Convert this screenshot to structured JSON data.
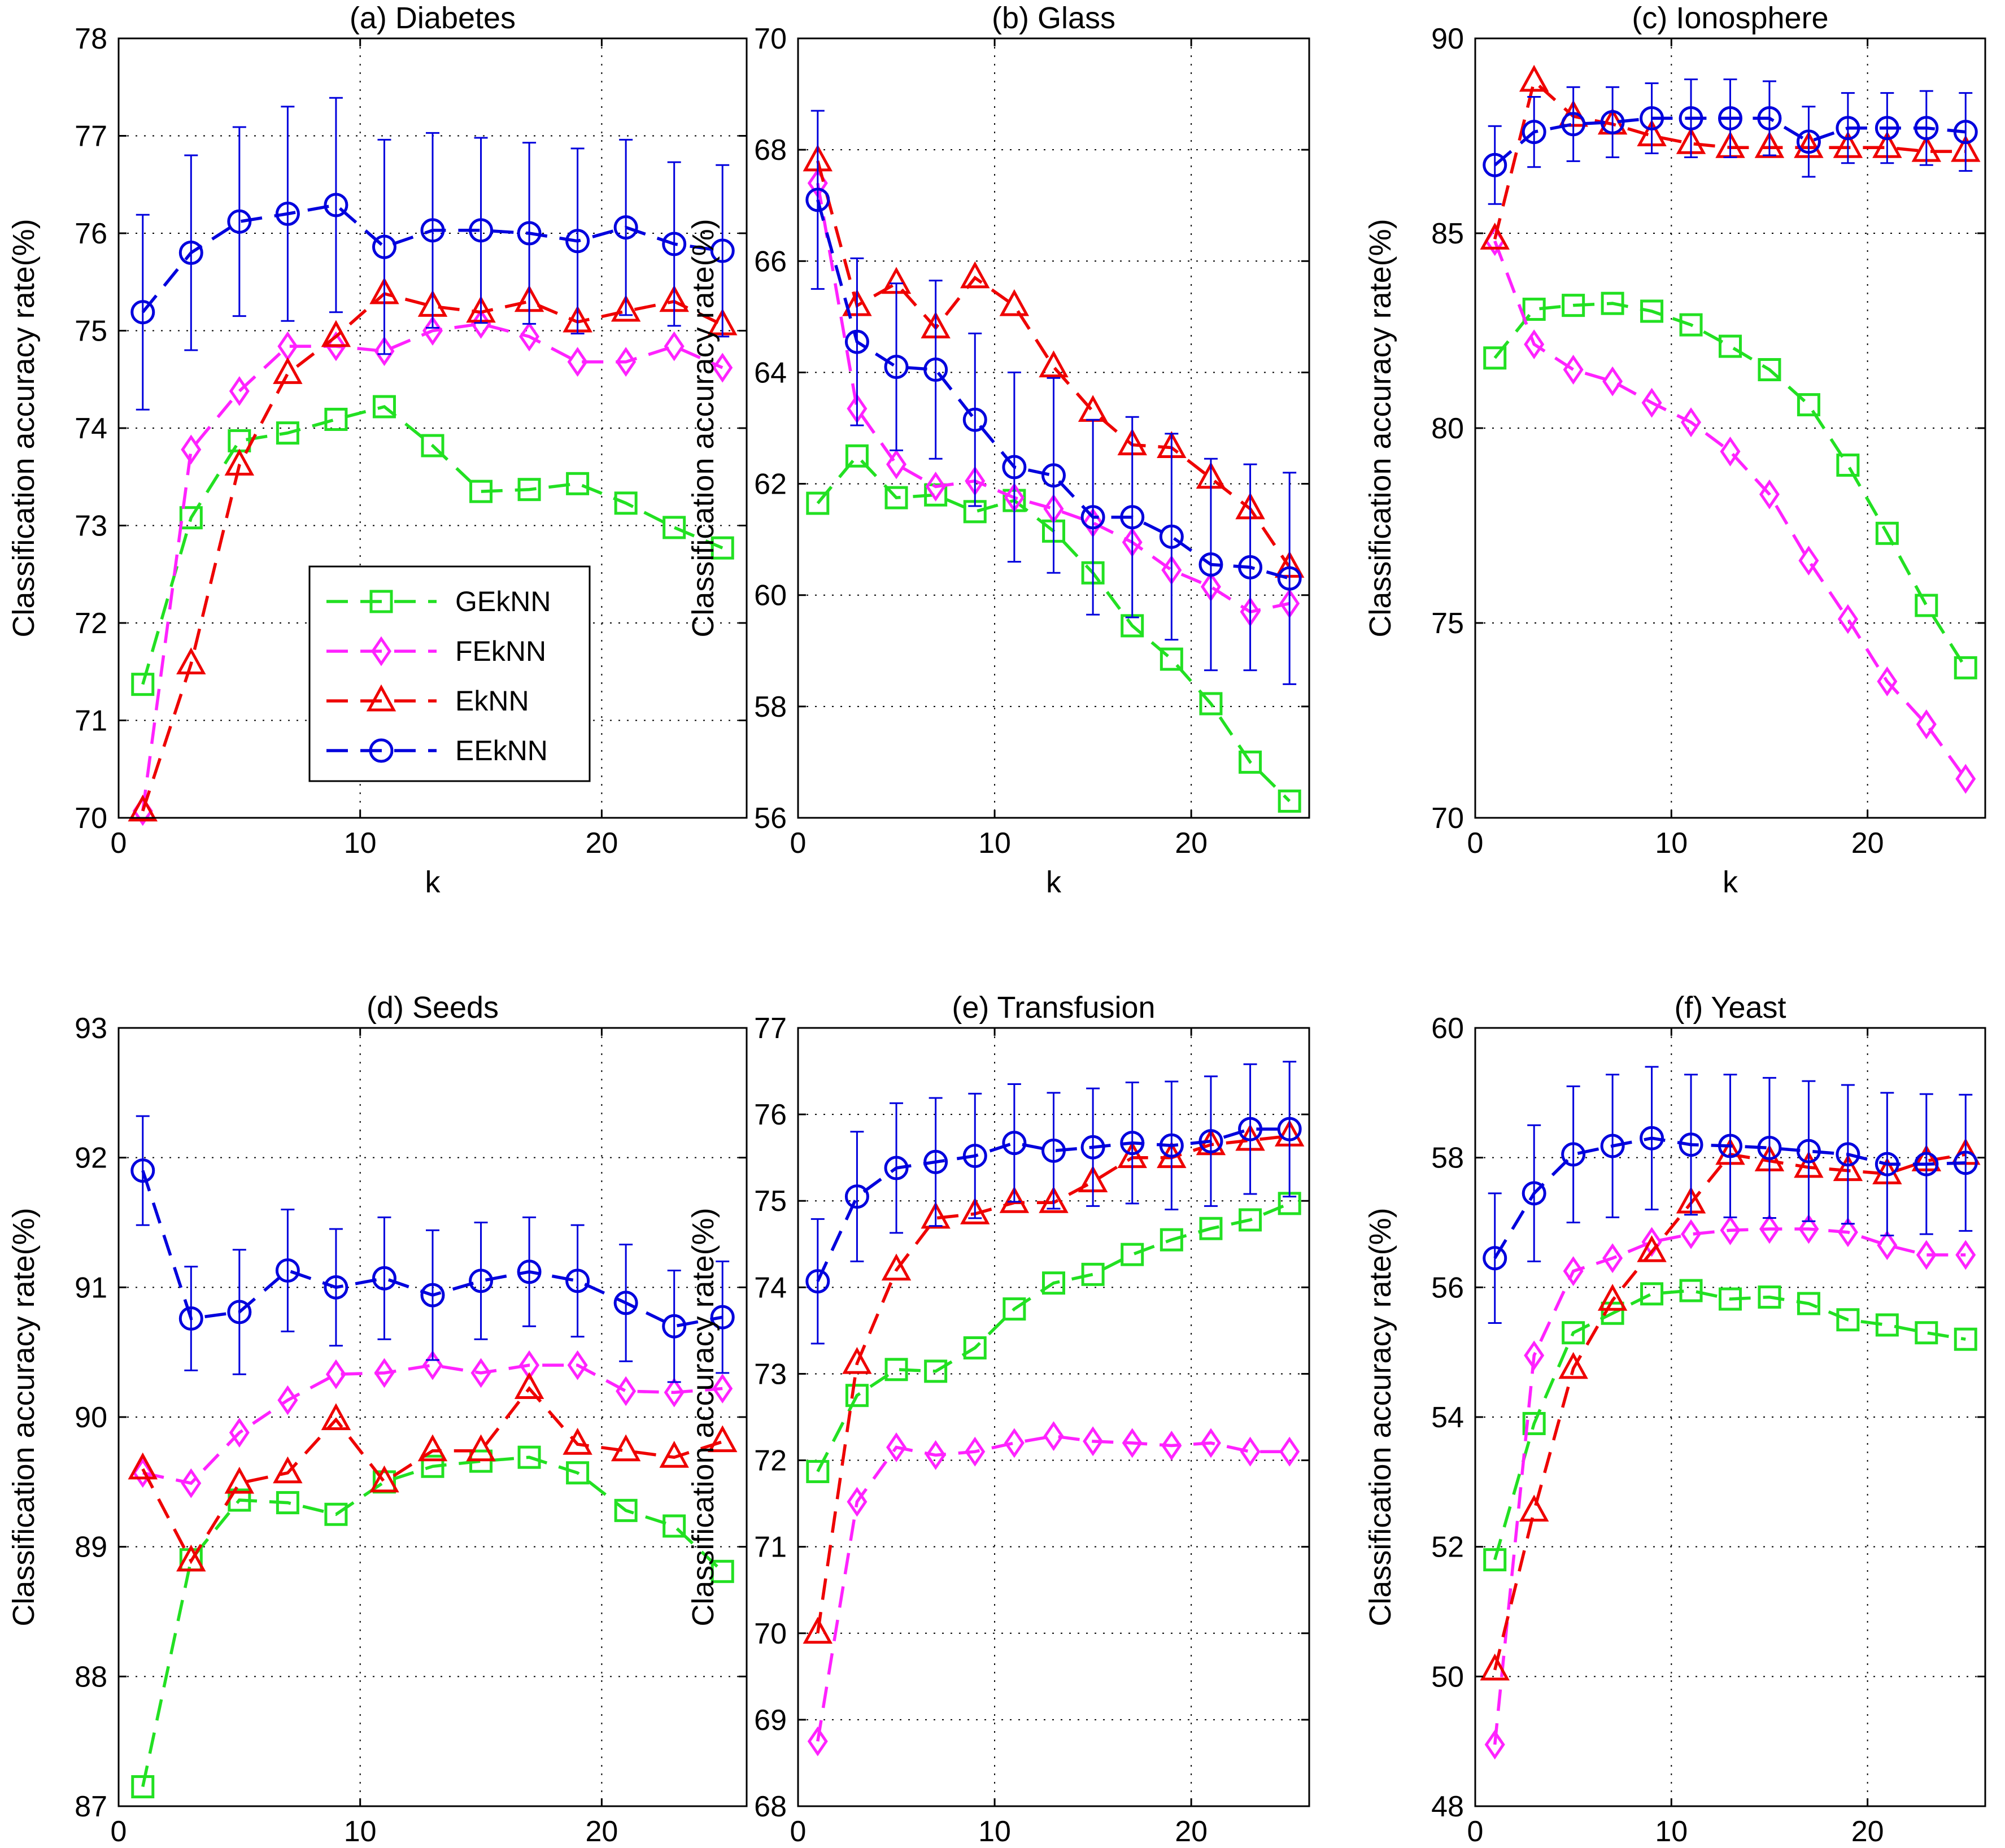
{
  "figure_name": "Classification accuracy vs k",
  "colors": {
    "GEkNN": "#22e022",
    "FEkNN": "#ff22ff",
    "EkNN": "#ee0000",
    "EEkNN": "#0000dd",
    "grid": "#000000",
    "axis": "#000000"
  },
  "legend": {
    "entries": [
      "GEkNN",
      "FEkNN",
      "EkNN",
      "EEkNN"
    ]
  },
  "chart_data": [
    {
      "type": "line",
      "title": "(a) Diabetes",
      "xlabel": "k",
      "ylabel": "Classification accuracy rate(%)",
      "xlim": [
        0,
        26
      ],
      "ylim": [
        70,
        78
      ],
      "xticks": [
        0,
        10,
        20
      ],
      "yticks": [
        70,
        71,
        72,
        73,
        74,
        75,
        76,
        77,
        78
      ],
      "grid": true,
      "legend": "lower-middle",
      "x": [
        1,
        3,
        5,
        7,
        9,
        11,
        13,
        15,
        17,
        19,
        21,
        23,
        25
      ],
      "series": [
        {
          "name": "GEkNN",
          "marker": "square",
          "values": [
            71.37,
            73.08,
            73.87,
            73.95,
            74.09,
            74.22,
            73.82,
            73.35,
            73.37,
            73.43,
            73.23,
            72.98,
            72.77
          ]
        },
        {
          "name": "FEkNN",
          "marker": "diamond",
          "values": [
            70.07,
            73.78,
            74.38,
            74.84,
            74.84,
            74.79,
            75.0,
            75.07,
            74.94,
            74.68,
            74.68,
            74.84,
            74.62
          ]
        },
        {
          "name": "EkNN",
          "marker": "triangle",
          "values": [
            70.07,
            71.58,
            73.62,
            74.56,
            74.94,
            75.38,
            75.25,
            75.19,
            75.3,
            75.09,
            75.2,
            75.3,
            75.06
          ]
        },
        {
          "name": "EEkNN",
          "marker": "circle",
          "values": [
            75.19,
            75.8,
            76.12,
            76.2,
            76.29,
            75.86,
            76.03,
            76.03,
            76.0,
            75.92,
            76.06,
            75.89,
            75.82
          ],
          "error": [
            1.0,
            1.0,
            0.97,
            1.1,
            1.1,
            1.1,
            1.0,
            0.95,
            0.93,
            0.95,
            0.9,
            0.84,
            0.88
          ]
        }
      ]
    },
    {
      "type": "line",
      "title": "(b) Glass",
      "xlabel": "k",
      "ylabel": "Classification accuracy rate(%)",
      "xlim": [
        0,
        26
      ],
      "ylim": [
        56,
        70
      ],
      "xticks": [
        0,
        10,
        20
      ],
      "yticks": [
        56,
        58,
        60,
        62,
        64,
        66,
        68,
        70
      ],
      "grid": true,
      "x": [
        1,
        3,
        5,
        7,
        9,
        11,
        13,
        15,
        17,
        19,
        21,
        23,
        25
      ],
      "series": [
        {
          "name": "GEkNN",
          "marker": "square",
          "values": [
            61.65,
            62.5,
            61.75,
            61.8,
            61.5,
            61.7,
            61.15,
            60.4,
            59.45,
            58.85,
            58.05,
            57.0,
            56.3
          ]
        },
        {
          "name": "FEkNN",
          "marker": "diamond",
          "values": [
            67.4,
            63.35,
            62.35,
            61.95,
            62.05,
            61.75,
            61.55,
            61.3,
            60.95,
            60.45,
            60.15,
            59.7,
            59.85
          ]
        },
        {
          "name": "EkNN",
          "marker": "triangle",
          "values": [
            67.8,
            65.2,
            65.6,
            64.8,
            65.7,
            65.2,
            64.1,
            63.3,
            62.7,
            62.65,
            62.1,
            61.55,
            60.5
          ]
        },
        {
          "name": "EEkNN",
          "marker": "circle",
          "values": [
            67.1,
            64.55,
            64.1,
            64.05,
            63.15,
            62.3,
            62.15,
            61.4,
            61.4,
            61.05,
            60.55,
            60.5,
            60.3
          ],
          "error": [
            1.6,
            1.5,
            1.5,
            1.6,
            1.55,
            1.7,
            1.75,
            1.75,
            1.8,
            1.85,
            1.9,
            1.85,
            1.9
          ]
        }
      ]
    },
    {
      "type": "line",
      "title": "(c) Ionosphere",
      "xlabel": "k",
      "ylabel": "Classification accuracy rate(%)",
      "xlim": [
        0,
        26
      ],
      "ylim": [
        70,
        90
      ],
      "xticks": [
        0,
        10,
        20
      ],
      "yticks": [
        70,
        75,
        80,
        85,
        90
      ],
      "grid": true,
      "x": [
        1,
        3,
        5,
        7,
        9,
        11,
        13,
        15,
        17,
        19,
        21,
        23,
        25
      ],
      "series": [
        {
          "name": "GEkNN",
          "marker": "square",
          "values": [
            81.8,
            83.05,
            83.15,
            83.2,
            83.0,
            82.65,
            82.1,
            81.5,
            80.6,
            79.05,
            77.3,
            75.45,
            73.85
          ]
        },
        {
          "name": "FEkNN",
          "marker": "diamond",
          "values": [
            84.8,
            82.15,
            81.5,
            81.2,
            80.65,
            80.15,
            79.4,
            78.3,
            76.6,
            75.1,
            73.5,
            72.4,
            71.0
          ]
        },
        {
          "name": "EkNN",
          "marker": "triangle",
          "values": [
            84.85,
            88.9,
            88.0,
            87.8,
            87.5,
            87.3,
            87.2,
            87.2,
            87.2,
            87.2,
            87.2,
            87.1,
            87.1
          ]
        },
        {
          "name": "EEkNN",
          "marker": "circle",
          "values": [
            86.75,
            87.6,
            87.8,
            87.85,
            87.95,
            87.95,
            87.95,
            87.95,
            87.35,
            87.7,
            87.7,
            87.7,
            87.6
          ],
          "error": [
            1.0,
            0.9,
            0.95,
            0.9,
            0.9,
            1.0,
            1.0,
            0.95,
            0.9,
            0.9,
            0.9,
            0.95,
            1.0
          ]
        }
      ]
    },
    {
      "type": "line",
      "title": "(d) Seeds",
      "xlabel": "k",
      "ylabel": "Classification accuracy rate(%)",
      "xlim": [
        0,
        26
      ],
      "ylim": [
        87,
        93
      ],
      "xticks": [
        0,
        10,
        20
      ],
      "yticks": [
        87,
        88,
        89,
        90,
        91,
        92,
        93
      ],
      "grid": true,
      "x": [
        1,
        3,
        5,
        7,
        9,
        11,
        13,
        15,
        17,
        19,
        21,
        23,
        25
      ],
      "series": [
        {
          "name": "GEkNN",
          "marker": "square",
          "values": [
            87.15,
            88.9,
            89.36,
            89.34,
            89.25,
            89.5,
            89.62,
            89.66,
            89.69,
            89.57,
            89.28,
            89.16,
            88.81
          ]
        },
        {
          "name": "FEkNN",
          "marker": "diamond",
          "values": [
            89.57,
            89.49,
            89.88,
            90.13,
            90.33,
            90.34,
            90.4,
            90.34,
            90.4,
            90.4,
            90.2,
            90.19,
            90.22
          ]
        },
        {
          "name": "EkNN",
          "marker": "triangle",
          "values": [
            89.6,
            88.89,
            89.49,
            89.57,
            89.98,
            89.5,
            89.74,
            89.74,
            90.22,
            89.79,
            89.74,
            89.69,
            89.81
          ]
        },
        {
          "name": "EEkNN",
          "marker": "circle",
          "values": [
            91.9,
            90.76,
            90.81,
            91.13,
            91.0,
            91.07,
            90.94,
            91.05,
            91.12,
            91.05,
            90.88,
            90.7,
            90.77
          ],
          "error": [
            0.42,
            0.4,
            0.48,
            0.47,
            0.45,
            0.47,
            0.5,
            0.45,
            0.42,
            0.43,
            0.45,
            0.43,
            0.43
          ]
        }
      ]
    },
    {
      "type": "line",
      "title": "(e) Transfusion",
      "xlabel": "k",
      "ylabel": "Classification accuracy rate(%)",
      "xlim": [
        0,
        26
      ],
      "ylim": [
        68,
        77
      ],
      "xticks": [
        0,
        10,
        20
      ],
      "yticks": [
        68,
        69,
        70,
        71,
        72,
        73,
        74,
        75,
        76,
        77
      ],
      "grid": true,
      "x": [
        1,
        3,
        5,
        7,
        9,
        11,
        13,
        15,
        17,
        19,
        21,
        23,
        25
      ],
      "series": [
        {
          "name": "GEkNN",
          "marker": "square",
          "values": [
            71.87,
            72.75,
            73.05,
            73.03,
            73.3,
            73.75,
            74.05,
            74.15,
            74.38,
            74.55,
            74.68,
            74.78,
            74.97
          ]
        },
        {
          "name": "FEkNN",
          "marker": "diamond",
          "values": [
            68.75,
            71.52,
            72.15,
            72.06,
            72.1,
            72.2,
            72.28,
            72.22,
            72.2,
            72.17,
            72.2,
            72.1,
            72.1
          ]
        },
        {
          "name": "EkNN",
          "marker": "triangle",
          "values": [
            70.0,
            73.12,
            74.2,
            74.8,
            74.85,
            74.98,
            74.98,
            75.22,
            75.5,
            75.5,
            75.65,
            75.7,
            75.75
          ]
        },
        {
          "name": "EEkNN",
          "marker": "circle",
          "values": [
            74.07,
            75.05,
            75.38,
            75.45,
            75.52,
            75.67,
            75.58,
            75.62,
            75.67,
            75.64,
            75.69,
            75.83,
            75.83
          ],
          "error": [
            0.72,
            0.75,
            0.75,
            0.74,
            0.72,
            0.68,
            0.67,
            0.68,
            0.7,
            0.74,
            0.75,
            0.75,
            0.78
          ]
        }
      ]
    },
    {
      "type": "line",
      "title": "(f) Yeast",
      "xlabel": "k",
      "ylabel": "Classification accuracy rate(%)",
      "xlim": [
        0,
        26
      ],
      "ylim": [
        48,
        60
      ],
      "xticks": [
        0,
        10,
        20
      ],
      "yticks": [
        48,
        50,
        52,
        54,
        56,
        58,
        60
      ],
      "grid": true,
      "x": [
        1,
        3,
        5,
        7,
        9,
        11,
        13,
        15,
        17,
        19,
        21,
        23,
        25
      ],
      "series": [
        {
          "name": "GEkNN",
          "marker": "square",
          "values": [
            51.8,
            53.9,
            55.3,
            55.6,
            55.9,
            55.95,
            55.82,
            55.85,
            55.75,
            55.5,
            55.42,
            55.3,
            55.2
          ]
        },
        {
          "name": "FEkNN",
          "marker": "diamond",
          "values": [
            48.95,
            54.95,
            56.25,
            56.45,
            56.7,
            56.82,
            56.88,
            56.9,
            56.9,
            56.85,
            56.65,
            56.5,
            56.5
          ]
        },
        {
          "name": "EkNN",
          "marker": "triangle",
          "values": [
            50.1,
            52.55,
            54.75,
            55.8,
            56.55,
            57.3,
            58.05,
            57.95,
            57.85,
            57.8,
            57.75,
            57.95,
            58.05
          ]
        },
        {
          "name": "EEkNN",
          "marker": "circle",
          "values": [
            56.45,
            57.45,
            58.05,
            58.18,
            58.3,
            58.2,
            58.18,
            58.15,
            58.1,
            58.05,
            57.9,
            57.9,
            57.92
          ],
          "error": [
            1.0,
            1.05,
            1.05,
            1.1,
            1.1,
            1.08,
            1.1,
            1.08,
            1.08,
            1.07,
            1.1,
            1.08,
            1.05
          ]
        }
      ]
    }
  ]
}
